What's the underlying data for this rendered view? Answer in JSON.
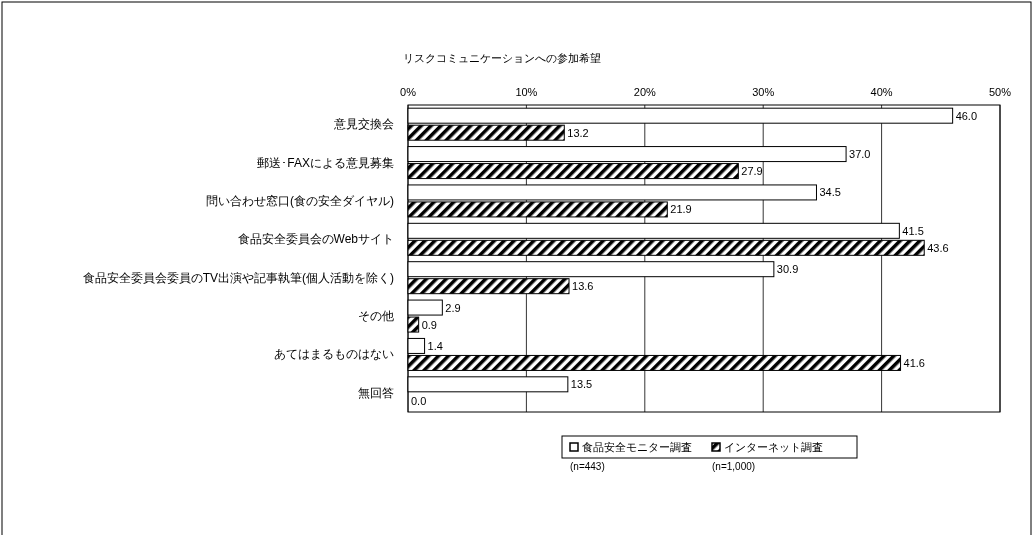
{
  "chart_data": {
    "type": "bar",
    "orientation": "horizontal",
    "title": "リスクコミュニケーションへの参加希望",
    "categories": [
      "意見交換会",
      "郵送･FAXによる意見募集",
      "問い合わせ窓口(食の安全ダイヤル)",
      "食品安全委員会のWebサイト",
      "食品安全委員会委員のTV出演や記事執筆(個人活動を除く)",
      "その他",
      "あてはまるものはない",
      "無回答"
    ],
    "series": [
      {
        "name": "食品安全モニター調査",
        "color": "#ffffff",
        "values": [
          46.0,
          37.0,
          34.5,
          41.5,
          30.9,
          2.9,
          1.4,
          13.5
        ],
        "value_labels": [
          "46.0",
          "37.0",
          "34.5",
          "41.5",
          "30.9",
          "2.9",
          "1.4",
          "13.5"
        ]
      },
      {
        "name": "インターネット調査",
        "color": "#000000",
        "values": [
          13.2,
          27.9,
          21.9,
          43.6,
          13.6,
          0.9,
          41.6,
          0.0
        ],
        "value_labels": [
          "13.2",
          "27.9",
          "21.9",
          "43.6",
          "13.6",
          "0.9",
          "41.6",
          "0.0"
        ]
      }
    ],
    "xlim": [
      0,
      50
    ],
    "xticks": [
      {
        "value": 0,
        "label": "0%"
      },
      {
        "value": 10,
        "label": "10%"
      },
      {
        "value": 20,
        "label": "20%"
      },
      {
        "value": 30,
        "label": "30%"
      },
      {
        "value": 40,
        "label": "40%"
      },
      {
        "value": 50,
        "label": "50%"
      }
    ],
    "grid": "x",
    "legend": "bottom",
    "annotations": [
      "(n=443)",
      "(n=1,000)"
    ]
  }
}
